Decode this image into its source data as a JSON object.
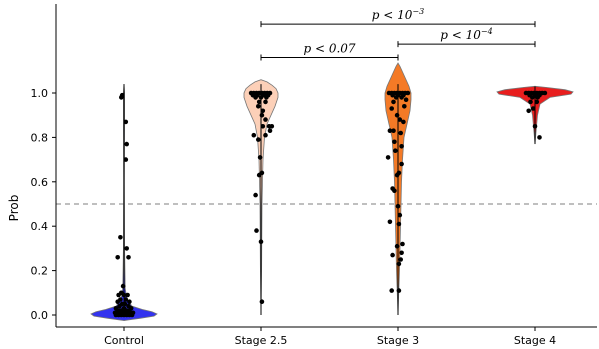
{
  "chart_data": {
    "type": "violin",
    "ylabel": "Prob",
    "ylim": [
      -0.03,
      1.32
    ],
    "yticks": [
      0.0,
      0.2,
      0.4,
      0.6,
      0.8,
      1.0
    ],
    "ytick_labels": [
      "0.0",
      "0.2",
      "0.4",
      "0.6",
      "0.8",
      "1.0"
    ],
    "categories": [
      "Control",
      "Stage 2.5",
      "Stage 3",
      "Stage 4"
    ],
    "reference_line": {
      "y": 0.5,
      "style": "dashed",
      "color": "#999999"
    },
    "series": [
      {
        "category": "Control",
        "color": "#3333ee",
        "range": [
          0.0,
          1.04
        ],
        "points": [
          [
            -0.02,
            0.99
          ],
          [
            -0.03,
            0.98
          ],
          [
            0.02,
            0.87
          ],
          [
            0.03,
            0.77
          ],
          [
            0.02,
            0.7
          ],
          [
            -0.04,
            0.35
          ],
          [
            0.03,
            0.3
          ],
          [
            -0.07,
            0.26
          ],
          [
            0.05,
            0.26
          ],
          [
            -0.01,
            0.13
          ],
          [
            -0.03,
            0.1
          ],
          [
            -0.06,
            0.09
          ],
          [
            0.0,
            0.09
          ],
          [
            0.04,
            0.09
          ],
          [
            -0.04,
            0.07
          ],
          [
            0.02,
            0.07
          ],
          [
            0.06,
            0.06
          ],
          [
            -0.07,
            0.06
          ],
          [
            -0.02,
            0.05
          ],
          [
            0.01,
            0.05
          ],
          [
            0.05,
            0.04
          ],
          [
            -0.05,
            0.04
          ],
          [
            -0.09,
            0.03
          ],
          [
            0.08,
            0.03
          ],
          [
            0.0,
            0.03
          ],
          [
            -0.03,
            0.02
          ],
          [
            0.03,
            0.02
          ],
          [
            -0.06,
            0.02
          ],
          [
            0.06,
            0.02
          ],
          [
            -0.1,
            0.01
          ],
          [
            -0.08,
            0.01
          ],
          [
            -0.05,
            0.01
          ],
          [
            -0.02,
            0.01
          ],
          [
            0.01,
            0.01
          ],
          [
            0.04,
            0.01
          ],
          [
            0.07,
            0.01
          ],
          [
            0.1,
            0.01
          ],
          [
            -0.09,
            0.0
          ],
          [
            -0.06,
            0.0
          ],
          [
            -0.03,
            0.0
          ],
          [
            0.0,
            0.0
          ],
          [
            0.03,
            0.0
          ],
          [
            0.06,
            0.0
          ],
          [
            0.09,
            0.0
          ]
        ]
      },
      {
        "category": "Stage 2.5",
        "color": "#fcd0b8",
        "range": [
          0.0,
          1.04
        ],
        "points": [
          [
            -0.11,
            1.0
          ],
          [
            -0.08,
            1.0
          ],
          [
            -0.05,
            1.0
          ],
          [
            -0.02,
            1.0
          ],
          [
            0.01,
            1.0
          ],
          [
            0.04,
            1.0
          ],
          [
            0.07,
            1.0
          ],
          [
            0.1,
            1.0
          ],
          [
            -0.09,
            0.99
          ],
          [
            -0.04,
            0.99
          ],
          [
            0.03,
            0.99
          ],
          [
            0.08,
            0.99
          ],
          [
            -0.06,
            0.98
          ],
          [
            0.0,
            0.98
          ],
          [
            0.06,
            0.98
          ],
          [
            -0.02,
            0.96
          ],
          [
            0.05,
            0.96
          ],
          [
            -0.03,
            0.94
          ],
          [
            0.02,
            0.92
          ],
          [
            0.01,
            0.9
          ],
          [
            0.05,
            0.88
          ],
          [
            0.02,
            0.85
          ],
          [
            0.09,
            0.85
          ],
          [
            0.12,
            0.85
          ],
          [
            0.1,
            0.83
          ],
          [
            -0.08,
            0.81
          ],
          [
            -0.03,
            0.79
          ],
          [
            0.05,
            0.81
          ],
          [
            -0.01,
            0.71
          ],
          [
            0.01,
            0.64
          ],
          [
            -0.02,
            0.63
          ],
          [
            -0.06,
            0.54
          ],
          [
            -0.05,
            0.38
          ],
          [
            0.0,
            0.33
          ],
          [
            0.01,
            0.06
          ]
        ]
      },
      {
        "category": "Stage 3",
        "color": "#f47a26",
        "range": [
          0.0,
          1.04
        ],
        "points": [
          [
            -0.1,
            1.0
          ],
          [
            -0.07,
            1.0
          ],
          [
            -0.04,
            1.0
          ],
          [
            -0.01,
            1.0
          ],
          [
            0.02,
            1.0
          ],
          [
            0.05,
            1.0
          ],
          [
            0.08,
            1.0
          ],
          [
            0.11,
            1.0
          ],
          [
            -0.06,
            0.99
          ],
          [
            0.0,
            0.99
          ],
          [
            0.06,
            0.99
          ],
          [
            -0.02,
            0.98
          ],
          [
            0.04,
            0.98
          ],
          [
            0.09,
            0.97
          ],
          [
            -0.05,
            0.96
          ],
          [
            0.07,
            0.94
          ],
          [
            -0.07,
            0.93
          ],
          [
            -0.01,
            0.9
          ],
          [
            0.02,
            0.88
          ],
          [
            0.06,
            0.87
          ],
          [
            -0.05,
            0.83
          ],
          [
            -0.09,
            0.83
          ],
          [
            0.03,
            0.82
          ],
          [
            -0.04,
            0.78
          ],
          [
            0.04,
            0.76
          ],
          [
            -0.03,
            0.74
          ],
          [
            -0.11,
            0.71
          ],
          [
            0.04,
            0.68
          ],
          [
            0.01,
            0.64
          ],
          [
            -0.01,
            0.63
          ],
          [
            -0.06,
            0.57
          ],
          [
            -0.04,
            0.56
          ],
          [
            0.0,
            0.49
          ],
          [
            0.02,
            0.45
          ],
          [
            -0.09,
            0.42
          ],
          [
            0.01,
            0.41
          ],
          [
            0.05,
            0.32
          ],
          [
            -0.01,
            0.31
          ],
          [
            0.04,
            0.28
          ],
          [
            -0.06,
            0.27
          ],
          [
            0.03,
            0.25
          ],
          [
            0.01,
            0.23
          ],
          [
            -0.07,
            0.11
          ],
          [
            0.01,
            0.11
          ]
        ]
      },
      {
        "category": "Stage 4",
        "color": "#e81e1e",
        "range": [
          0.77,
          1.03
        ],
        "points": [
          [
            -0.1,
            1.0
          ],
          [
            -0.07,
            1.0
          ],
          [
            -0.04,
            1.0
          ],
          [
            -0.01,
            1.0
          ],
          [
            0.02,
            1.0
          ],
          [
            0.05,
            1.0
          ],
          [
            0.08,
            1.0
          ],
          [
            0.11,
            1.0
          ],
          [
            -0.06,
            0.99
          ],
          [
            0.0,
            0.99
          ],
          [
            0.05,
            0.99
          ],
          [
            -0.03,
            0.98
          ],
          [
            0.03,
            0.98
          ],
          [
            -0.05,
            0.96
          ],
          [
            0.02,
            0.96
          ],
          [
            -0.02,
            0.93
          ],
          [
            -0.07,
            0.92
          ],
          [
            0.0,
            0.85
          ],
          [
            0.05,
            0.8
          ]
        ]
      }
    ],
    "annotations": [
      {
        "from": "Stage 2.5",
        "to": "Stage 4",
        "label": "p < 10",
        "exponent": "−3",
        "y": 1.31
      },
      {
        "from": "Stage 2.5",
        "to": "Stage 3",
        "label": "p < 0.07",
        "y": 1.16
      },
      {
        "from": "Stage 3",
        "to": "Stage 4",
        "label": "p < 10",
        "exponent": "−4",
        "y": 1.22
      }
    ]
  }
}
